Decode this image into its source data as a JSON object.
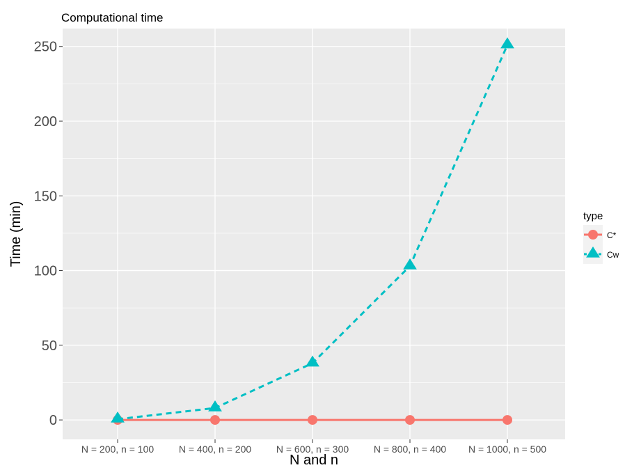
{
  "chart_data": {
    "type": "line",
    "title": "Computational time",
    "xlabel": "N and n",
    "ylabel": "Time (min)",
    "categories": [
      "N = 200, n = 100",
      "N = 400, n = 200",
      "N = 600, n = 300",
      "N = 800, n = 400",
      "N = 1000, n = 500"
    ],
    "ylim": [
      -13,
      262
    ],
    "yticks": [
      0,
      50,
      100,
      150,
      200,
      250
    ],
    "grid": true,
    "legend": {
      "title": "type",
      "position": "right"
    },
    "series": [
      {
        "name": "C*",
        "values": [
          0,
          0,
          0,
          0,
          0
        ],
        "color": "#F8766D",
        "marker": "circle",
        "line": "solid"
      },
      {
        "name": "Cw",
        "values": [
          0.5,
          8,
          38,
          103,
          251
        ],
        "color": "#00BFC4",
        "marker": "triangle",
        "line": "dashed"
      }
    ]
  }
}
